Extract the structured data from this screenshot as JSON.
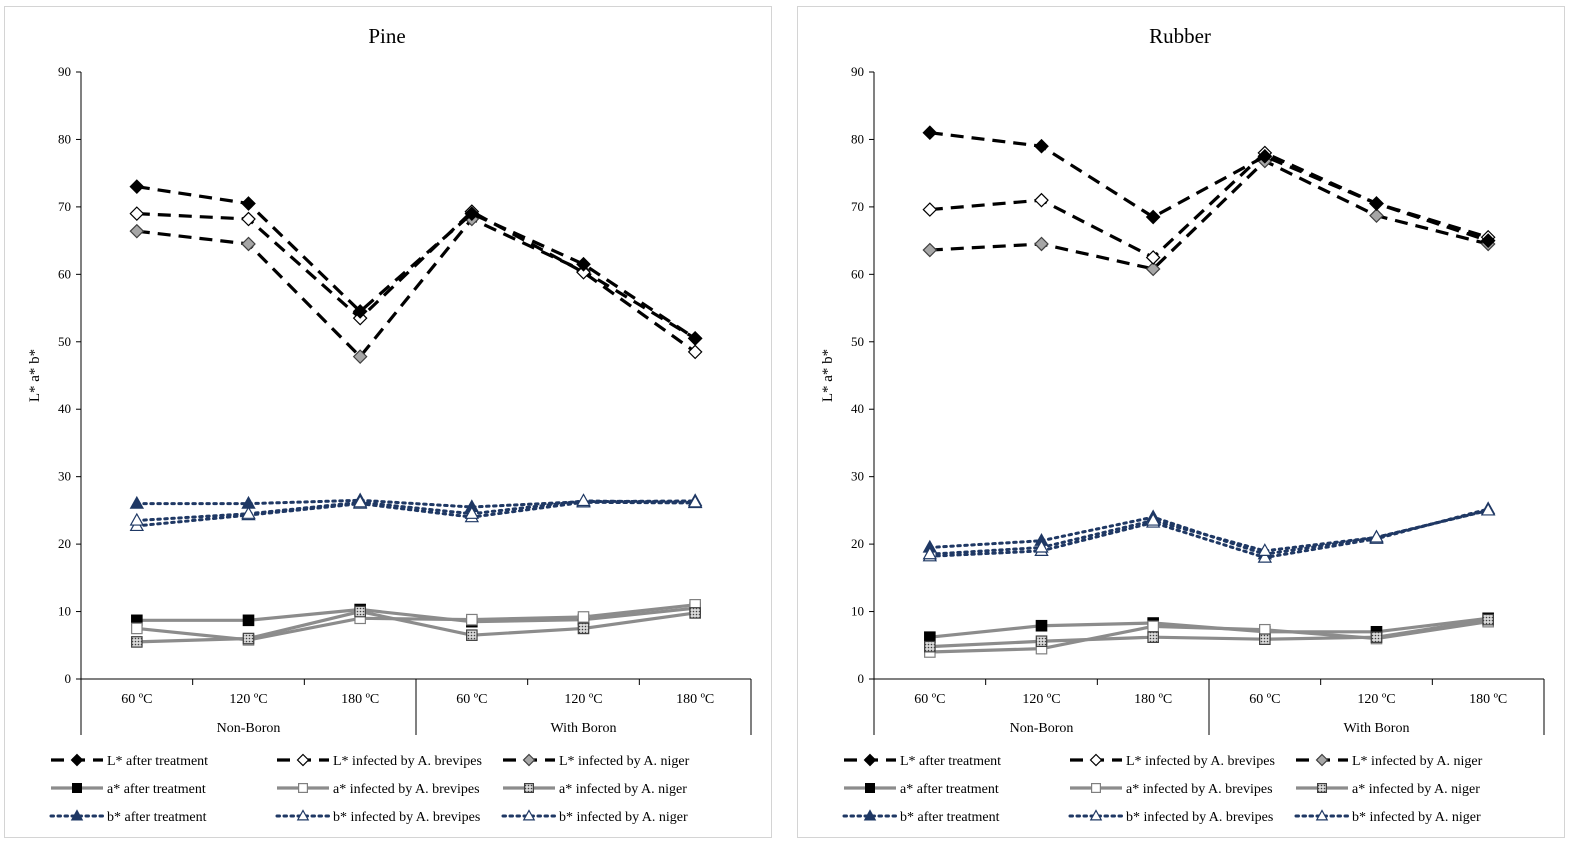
{
  "chart_data": [
    {
      "type": "line",
      "title": "Pine",
      "ylabel": "L* a* b*",
      "ylim": [
        0,
        90
      ],
      "yticks": [
        0,
        10,
        20,
        30,
        40,
        50,
        60,
        70,
        80,
        90
      ],
      "categories": [
        "60 ºC",
        "120 ºC",
        "180 ºC",
        "60 ºC",
        "120 ºC",
        "180 ºC"
      ],
      "groups": [
        {
          "label": "Non-Boron",
          "span": [
            0,
            2
          ]
        },
        {
          "label": "With Boron",
          "span": [
            3,
            5
          ]
        }
      ],
      "series": [
        {
          "name": "L* after treatment",
          "values": [
            73,
            70.5,
            54.5,
            69,
            61.5,
            50.5
          ]
        },
        {
          "name": "L* infected by A. brevipes",
          "values": [
            69,
            68.2,
            53.5,
            69.3,
            60.3,
            48.5
          ]
        },
        {
          "name": "L* infected by A. niger",
          "values": [
            66.4,
            64.5,
            47.8,
            68.2,
            60.5,
            50.5
          ]
        },
        {
          "name": "a* after treatment",
          "values": [
            8.7,
            8.7,
            10.3,
            8.5,
            8.8,
            10.5
          ]
        },
        {
          "name": "a* infected by A. brevipes",
          "values": [
            7.5,
            5.8,
            9,
            8.8,
            9.2,
            11
          ]
        },
        {
          "name": "a* infected by A. niger",
          "values": [
            5.5,
            6,
            10,
            6.5,
            7.5,
            9.8
          ]
        },
        {
          "name": "b* after treatment",
          "values": [
            26,
            26,
            26.5,
            25.5,
            26.3,
            26.4
          ]
        },
        {
          "name": "b* infected by A. brevipes",
          "values": [
            22.7,
            24.3,
            26,
            24,
            26.2,
            26.1
          ]
        },
        {
          "name": "b* infected by A. niger",
          "values": [
            23.5,
            24.5,
            26.2,
            24.5,
            26.4,
            26.2
          ]
        }
      ],
      "legend_position": "bottom"
    },
    {
      "type": "line",
      "title": "Rubber",
      "ylabel": "L* a* b*",
      "ylim": [
        0,
        90
      ],
      "yticks": [
        0,
        10,
        20,
        30,
        40,
        50,
        60,
        70,
        80,
        90
      ],
      "categories": [
        "60 ºC",
        "120 ºC",
        "180 ºC",
        "60 ºC",
        "120 ºC",
        "180 ºC"
      ],
      "groups": [
        {
          "label": "Non-Boron",
          "span": [
            0,
            2
          ]
        },
        {
          "label": "With Boron",
          "span": [
            3,
            5
          ]
        }
      ],
      "series": [
        {
          "name": "L* after treatment",
          "values": [
            81,
            79,
            68.5,
            77.5,
            70.5,
            65
          ]
        },
        {
          "name": "L* infected by A. brevipes",
          "values": [
            69.6,
            71,
            62.5,
            78,
            70.5,
            65.5
          ]
        },
        {
          "name": "L* infected by A. niger",
          "values": [
            63.6,
            64.5,
            60.8,
            76.8,
            68.7,
            64.5
          ]
        },
        {
          "name": "a* after treatment",
          "values": [
            6.2,
            7.9,
            8.3,
            7,
            7,
            9
          ]
        },
        {
          "name": "a* infected by A. brevipes",
          "values": [
            4,
            4.5,
            7.8,
            7.3,
            6,
            8.5
          ]
        },
        {
          "name": "a* infected by A. niger",
          "values": [
            4.8,
            5.6,
            6.2,
            5.9,
            6.2,
            8.8
          ]
        },
        {
          "name": "b* after treatment",
          "values": [
            19.5,
            20.5,
            24,
            18.5,
            21,
            25
          ]
        },
        {
          "name": "b* infected by A. brevipes",
          "values": [
            18.2,
            19,
            23.2,
            18,
            20.8,
            25.2
          ]
        },
        {
          "name": "b* infected by A. niger",
          "values": [
            18.5,
            19.5,
            23.5,
            19,
            21,
            25
          ]
        }
      ],
      "legend_position": "bottom"
    }
  ],
  "colors": {
    "L": "#000000",
    "a": "#8c8c8c",
    "b": "#1f3864",
    "niger_fill": "#a6a6a6",
    "a_niger_fill": "#bfbfbf"
  }
}
